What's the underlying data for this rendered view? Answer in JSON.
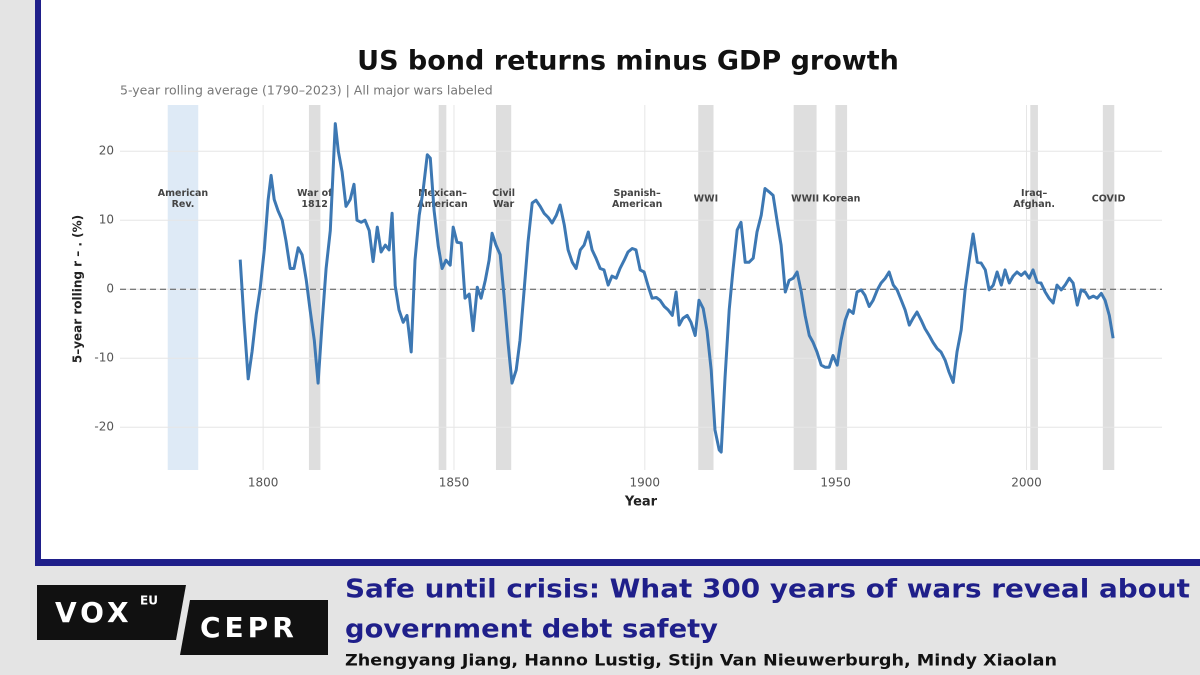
{
  "chart_data": {
    "type": "line",
    "title": "US bond returns minus GDP growth",
    "subtitle": "5-year rolling average (1790–2023) | All major wars labeled",
    "x_label": "Year",
    "y_label": "5–year rolling r – . (%)",
    "color": "#3d78b3",
    "grid": true,
    "reference_line": 0,
    "xlim": [
      1762.5,
      2035.5
    ],
    "ylim": [
      -26.2,
      26.7
    ],
    "xticks": [
      1800,
      1850,
      1900,
      1950,
      2000
    ],
    "yticks": [
      -20,
      -10,
      0,
      10,
      20
    ],
    "periods": [
      {
        "label_lines": [
          "American",
          "Rev."
        ],
        "start": 1775,
        "end": 1783,
        "color": "#deeaf6"
      },
      {
        "label_lines": [
          "War of",
          "1812"
        ],
        "start": 1812,
        "end": 1815,
        "color": "#dedede"
      },
      {
        "label_lines": [
          "Mexican–",
          "American"
        ],
        "start": 1846,
        "end": 1848,
        "color": "#dedede"
      },
      {
        "label_lines": [
          "Civil",
          "War"
        ],
        "start": 1861,
        "end": 1865,
        "color": "#dedede"
      },
      {
        "label_lines": [
          "Spanish–",
          "American"
        ],
        "start": 1898,
        "end": 1898,
        "color": "#dedede"
      },
      {
        "label_lines": [
          "WWI"
        ],
        "start": 1914,
        "end": 1918,
        "color": "#dedede"
      },
      {
        "label_lines": [
          "WWII"
        ],
        "start": 1939,
        "end": 1945,
        "color": "#dedede"
      },
      {
        "label_lines": [
          "Korean"
        ],
        "start": 1950,
        "end": 1953,
        "color": "#dedede"
      },
      {
        "label_lines": [
          "Iraq–",
          "Afghan."
        ],
        "start": 2001,
        "end": 2003,
        "color": "#dedede"
      },
      {
        "label_lines": [
          "COVID"
        ],
        "start": 2020,
        "end": 2023,
        "color": "#dedede"
      }
    ],
    "x": [
      1794.0,
      1795.0,
      1796.1,
      1797.1,
      1798.2,
      1799.2,
      1800.3,
      1801.3,
      1802.1,
      1802.9,
      1803.9,
      1805.0,
      1806.0,
      1807.1,
      1808.1,
      1809.2,
      1810.2,
      1811.3,
      1812.3,
      1813.4,
      1814.4,
      1815.5,
      1816.5,
      1817.6,
      1818.9,
      1819.7,
      1820.7,
      1821.7,
      1822.8,
      1823.8,
      1824.6,
      1825.7,
      1826.7,
      1827.8,
      1828.8,
      1829.9,
      1830.9,
      1832.0,
      1833.0,
      1833.8,
      1834.6,
      1835.6,
      1836.7,
      1837.7,
      1838.8,
      1839.8,
      1840.9,
      1841.9,
      1843.0,
      1843.8,
      1844.8,
      1845.9,
      1846.9,
      1847.9,
      1849.0,
      1849.8,
      1850.8,
      1851.9,
      1852.9,
      1854.0,
      1855.0,
      1856.1,
      1857.1,
      1858.2,
      1859.2,
      1860.0,
      1861.0,
      1862.1,
      1863.1,
      1864.2,
      1865.2,
      1866.3,
      1867.3,
      1868.4,
      1869.4,
      1870.5,
      1871.5,
      1872.6,
      1873.6,
      1874.7,
      1875.7,
      1876.8,
      1877.8,
      1878.9,
      1879.9,
      1881.0,
      1882.0,
      1883.1,
      1884.1,
      1885.2,
      1886.2,
      1887.2,
      1888.3,
      1889.3,
      1890.4,
      1891.4,
      1892.5,
      1893.5,
      1894.6,
      1895.6,
      1896.7,
      1897.7,
      1898.8,
      1899.8,
      1900.9,
      1901.9,
      1903.0,
      1904.0,
      1905.1,
      1906.1,
      1907.2,
      1908.2,
      1909.0,
      1910.0,
      1911.1,
      1912.1,
      1913.2,
      1914.2,
      1915.3,
      1916.3,
      1917.4,
      1918.4,
      1919.5,
      1920.0,
      1921.0,
      1922.1,
      1923.1,
      1924.2,
      1925.2,
      1926.3,
      1927.3,
      1928.4,
      1929.4,
      1930.5,
      1931.5,
      1932.6,
      1933.6,
      1934.7,
      1935.7,
      1936.8,
      1937.8,
      1938.9,
      1939.9,
      1941.0,
      1942.0,
      1943.1,
      1944.1,
      1945.1,
      1946.2,
      1947.2,
      1948.3,
      1949.3,
      1950.4,
      1951.4,
      1952.5,
      1953.5,
      1954.6,
      1955.6,
      1956.7,
      1957.7,
      1958.8,
      1959.8,
      1960.9,
      1961.9,
      1963.0,
      1964.0,
      1965.1,
      1966.1,
      1967.2,
      1968.2,
      1969.3,
      1970.3,
      1971.3,
      1972.4,
      1973.4,
      1974.5,
      1975.5,
      1976.6,
      1977.6,
      1978.7,
      1979.7,
      1980.8,
      1981.8,
      1982.9,
      1983.9,
      1985.0,
      1986.0,
      1987.1,
      1988.1,
      1989.2,
      1990.2,
      1991.3,
      1992.3,
      1993.4,
      1994.4,
      1995.5,
      1996.5,
      1997.5,
      1998.6,
      1999.6,
      2000.7,
      2001.7,
      2002.8,
      2003.8,
      2004.9,
      2005.9,
      2007.0,
      2008.0,
      2009.1,
      2010.1,
      2011.2,
      2012.2,
      2013.3,
      2014.3,
      2015.4,
      2016.4,
      2017.5,
      2018.5,
      2019.6,
      2020.6,
      2021.7,
      2022.7
    ],
    "values": [
      4.3,
      -4.5,
      -13,
      -9,
      -3.6,
      0,
      5.7,
      12.9,
      16.5,
      13,
      11.4,
      10,
      7,
      3,
      3,
      6,
      5,
      1.3,
      -3,
      -7.4,
      -13.6,
      -4.5,
      3,
      8.5,
      24,
      20,
      17,
      12,
      13,
      15.2,
      10,
      9.7,
      10,
      8.5,
      4,
      9,
      5.4,
      6.4,
      5.7,
      11,
      0.5,
      -3,
      -4.8,
      -3.8,
      -9.1,
      4.2,
      10.7,
      14.3,
      19.5,
      19,
      11.4,
      6.2,
      3,
      4.2,
      3.5,
      9,
      6.8,
      6.7,
      -1.3,
      -0.7,
      -6,
      0.3,
      -1.3,
      1.3,
      4.2,
      8.1,
      6.4,
      5,
      -0.9,
      -8,
      -13.6,
      -11.7,
      -7.4,
      0,
      6.8,
      12.5,
      12.9,
      12,
      11,
      10.4,
      9.6,
      10.7,
      12.2,
      9.3,
      5.7,
      3.9,
      3,
      5.7,
      6.4,
      8.3,
      5.7,
      4.5,
      3,
      2.8,
      0.6,
      1.9,
      1.6,
      3,
      4.2,
      5.4,
      5.9,
      5.7,
      2.8,
      2.5,
      0.4,
      -1.3,
      -1.2,
      -1.6,
      -2.5,
      -3,
      -3.8,
      -0.4,
      -5.2,
      -4.2,
      -3.8,
      -4.8,
      -6.7,
      -1.6,
      -2.8,
      -6,
      -11.7,
      -20.4,
      -23.3,
      -23.6,
      -12.9,
      -3,
      2.8,
      8.6,
      9.7,
      3.9,
      3.9,
      4.5,
      8.3,
      10.7,
      14.6,
      14.1,
      13.6,
      9.7,
      6.4,
      -0.4,
      1.3,
      1.6,
      2.5,
      -0.4,
      -3.8,
      -6.7,
      -7.7,
      -9.1,
      -11,
      -11.3,
      -11.3,
      -9.6,
      -11,
      -7.4,
      -4.5,
      -3,
      -3.5,
      -0.4,
      -0.1,
      -0.9,
      -2.5,
      -1.6,
      -0.1,
      0.9,
      1.6,
      2.5,
      0.6,
      -0.1,
      -1.6,
      -3,
      -5.2,
      -4.2,
      -3.3,
      -4.5,
      -5.7,
      -6.7,
      -7.7,
      -8.6,
      -9.1,
      -10.3,
      -12,
      -13.5,
      -9.1,
      -5.9,
      -0.1,
      4.2,
      8,
      3.9,
      3.8,
      2.8,
      -0.1,
      0.6,
      2.5,
      0.6,
      2.8,
      0.9,
      1.9,
      2.5,
      2,
      2.5,
      1.6,
      2.8,
      1,
      0.9,
      -0.4,
      -1.3,
      -2,
      0.6,
      -0.1,
      0.6,
      1.6,
      0.9,
      -2.3,
      -0.1,
      -0.4,
      -1.3,
      -1,
      -1.3,
      -0.6,
      -1.6,
      -3.8,
      -7.1
    ]
  },
  "logo": {
    "vox": "VOX",
    "eu": "EU",
    "cepr": "CEPR"
  },
  "article": {
    "title_lines": [
      "Safe until crisis: What 300 years of wars reveal about",
      "government debt safety"
    ],
    "authors": "Zhengyang Jiang, Hanno Lustig, Stijn Van Nieuwerburgh, Mindy Xiaolan"
  }
}
